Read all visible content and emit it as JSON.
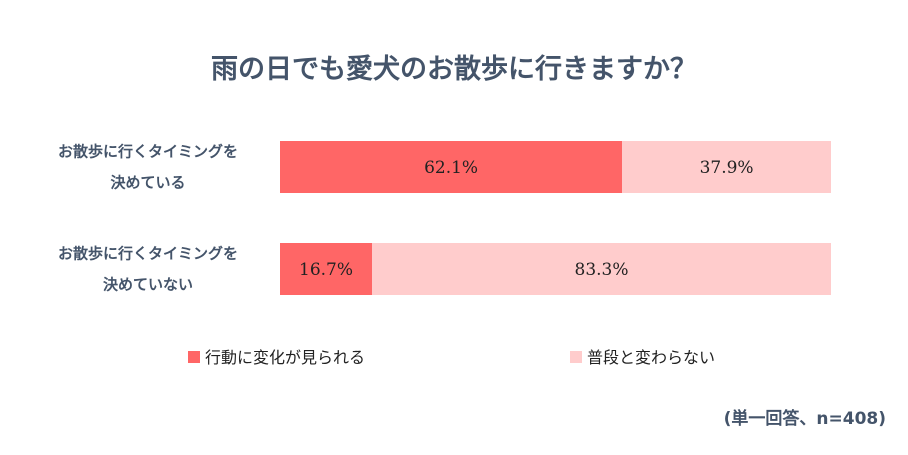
{
  "chart_data": {
    "type": "bar",
    "orientation": "horizontal",
    "stacked": true,
    "percent_stacked": true,
    "title": "雨の日でも愛犬のお散歩に行きますか？",
    "categories": [
      [
        "お散歩に行くタイミングを",
        "決めている"
      ],
      [
        "お散歩に行くタイミングを",
        "決めていない"
      ]
    ],
    "series": [
      {
        "name": "行動に変化が見られる",
        "values": [
          62.1,
          16.7
        ],
        "labels": [
          "62.1%",
          "16.7%"
        ],
        "color": "#ff6666"
      },
      {
        "name": "普段と変わらない",
        "values": [
          37.9,
          83.3
        ],
        "labels": [
          "37.9%",
          "83.3%"
        ],
        "color": "#ffcccc"
      }
    ],
    "xlim": [
      0,
      100
    ],
    "grid": false,
    "legend_position": "bottom",
    "note": "(単一回答、n=408)"
  }
}
